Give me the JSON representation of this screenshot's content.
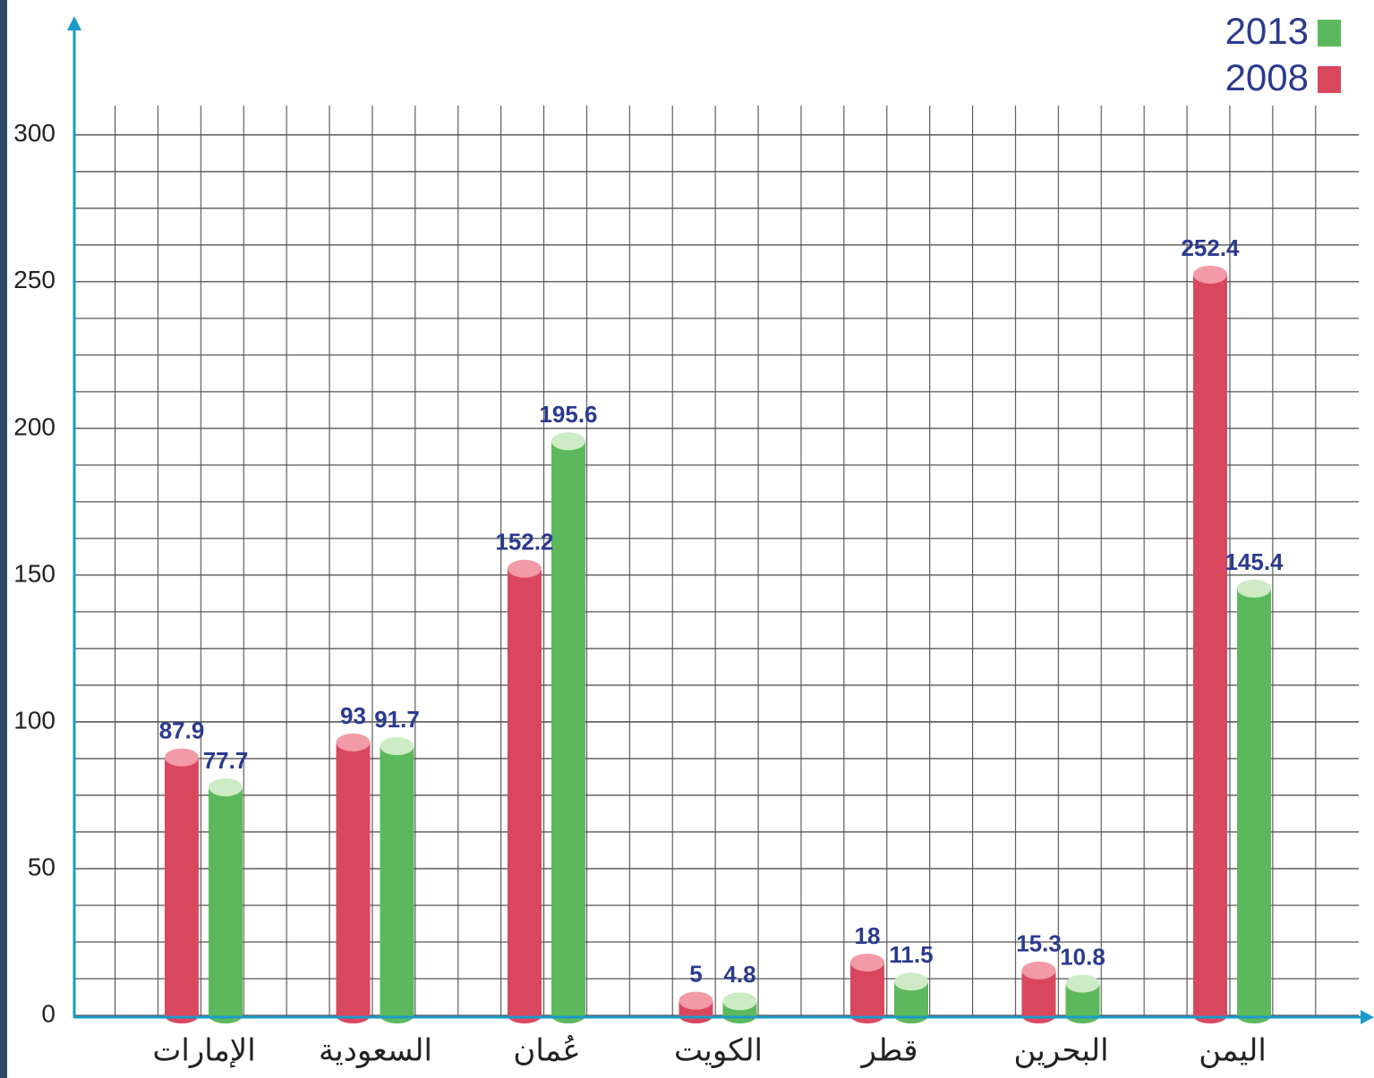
{
  "chart_data": {
    "type": "bar",
    "categories": [
      "الإمارات",
      "السعودية",
      "عُمان",
      "الكويت",
      "قطر",
      "البحرين",
      "اليمن"
    ],
    "series": [
      {
        "name": "2008",
        "color": "#d9475f",
        "values": [
          87.9,
          93,
          152.2,
          5,
          18,
          15.3,
          252.4
        ]
      },
      {
        "name": "2013",
        "color": "#5cb85c",
        "values": [
          77.7,
          91.7,
          195.6,
          4.8,
          11.5,
          10.8,
          145.4
        ]
      }
    ],
    "ylim": [
      0,
      310
    ],
    "yticks": [
      0,
      50,
      100,
      150,
      200,
      250,
      300
    ],
    "grid": true,
    "legend": "top-right"
  }
}
